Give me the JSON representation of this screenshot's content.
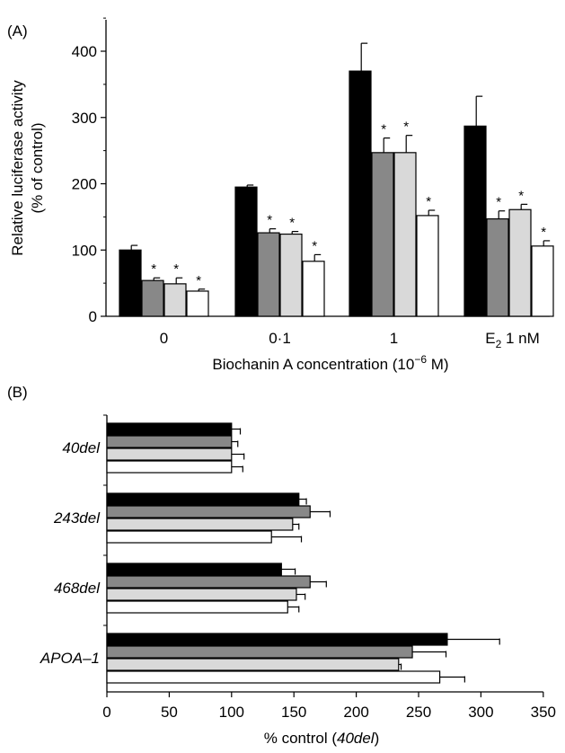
{
  "header": {
    "partial_text": ""
  },
  "chart_data": [
    {
      "type": "bar",
      "panel_label": "(A)",
      "orientation": "vertical",
      "categories": [
        "0",
        "0·1",
        "1",
        "E₂ 1 nM"
      ],
      "category_parts": [
        {
          "main": "0"
        },
        {
          "main": "0·1"
        },
        {
          "main": "1"
        },
        {
          "main": "E",
          "sub": "2",
          "rest": " 1 nM"
        }
      ],
      "series": [
        {
          "fill": "#000000",
          "values": [
            100,
            195,
            370,
            287
          ],
          "errors": [
            7,
            3,
            42,
            45
          ]
        },
        {
          "fill": "#888888",
          "values": [
            54,
            126,
            247,
            147
          ],
          "errors": [
            4,
            6,
            22,
            12
          ]
        },
        {
          "fill": "#d9d9d9",
          "values": [
            49,
            124,
            247,
            161
          ],
          "errors": [
            9,
            4,
            26,
            8
          ]
        },
        {
          "fill": "#ffffff",
          "values": [
            38,
            83,
            152,
            106
          ],
          "errors": [
            3,
            10,
            8,
            8
          ]
        }
      ],
      "significance_marker": "*",
      "significant": [
        [
          false,
          true,
          true,
          true
        ],
        [
          false,
          true,
          true,
          true
        ],
        [
          false,
          true,
          true,
          true
        ],
        [
          false,
          true,
          true,
          true
        ]
      ],
      "ylabel": "Relative luciferase activity",
      "ylabel2": "(% of control)",
      "xlabel": "Biochanin A concentration (10",
      "xlabel_sup": "−6",
      "xlabel_tail": " M)",
      "ylim": [
        0,
        450
      ],
      "yticks": [
        0,
        100,
        200,
        300,
        400
      ],
      "grid": false
    },
    {
      "type": "bar",
      "panel_label": "(B)",
      "orientation": "horizontal",
      "categories": [
        "40del",
        "243del",
        "468del",
        "APOA–1"
      ],
      "series": [
        {
          "fill": "#000000",
          "values": [
            100,
            154,
            140,
            273
          ],
          "errors": [
            7,
            6,
            11,
            42
          ]
        },
        {
          "fill": "#888888",
          "values": [
            100,
            163,
            163,
            245
          ],
          "errors": [
            5,
            16,
            13,
            27
          ]
        },
        {
          "fill": "#d9d9d9",
          "values": [
            100,
            149,
            152,
            234
          ],
          "errors": [
            10,
            5,
            7,
            2
          ]
        },
        {
          "fill": "#ffffff",
          "values": [
            100,
            132,
            145,
            267
          ],
          "errors": [
            9,
            24,
            9,
            20
          ]
        }
      ],
      "xlabel": "% control (",
      "xlabel_italic": "40del",
      "xlabel_tail": ")",
      "xlim": [
        0,
        350
      ],
      "xticks": [
        0,
        50,
        100,
        150,
        200,
        250,
        300,
        350
      ],
      "grid": false
    }
  ]
}
